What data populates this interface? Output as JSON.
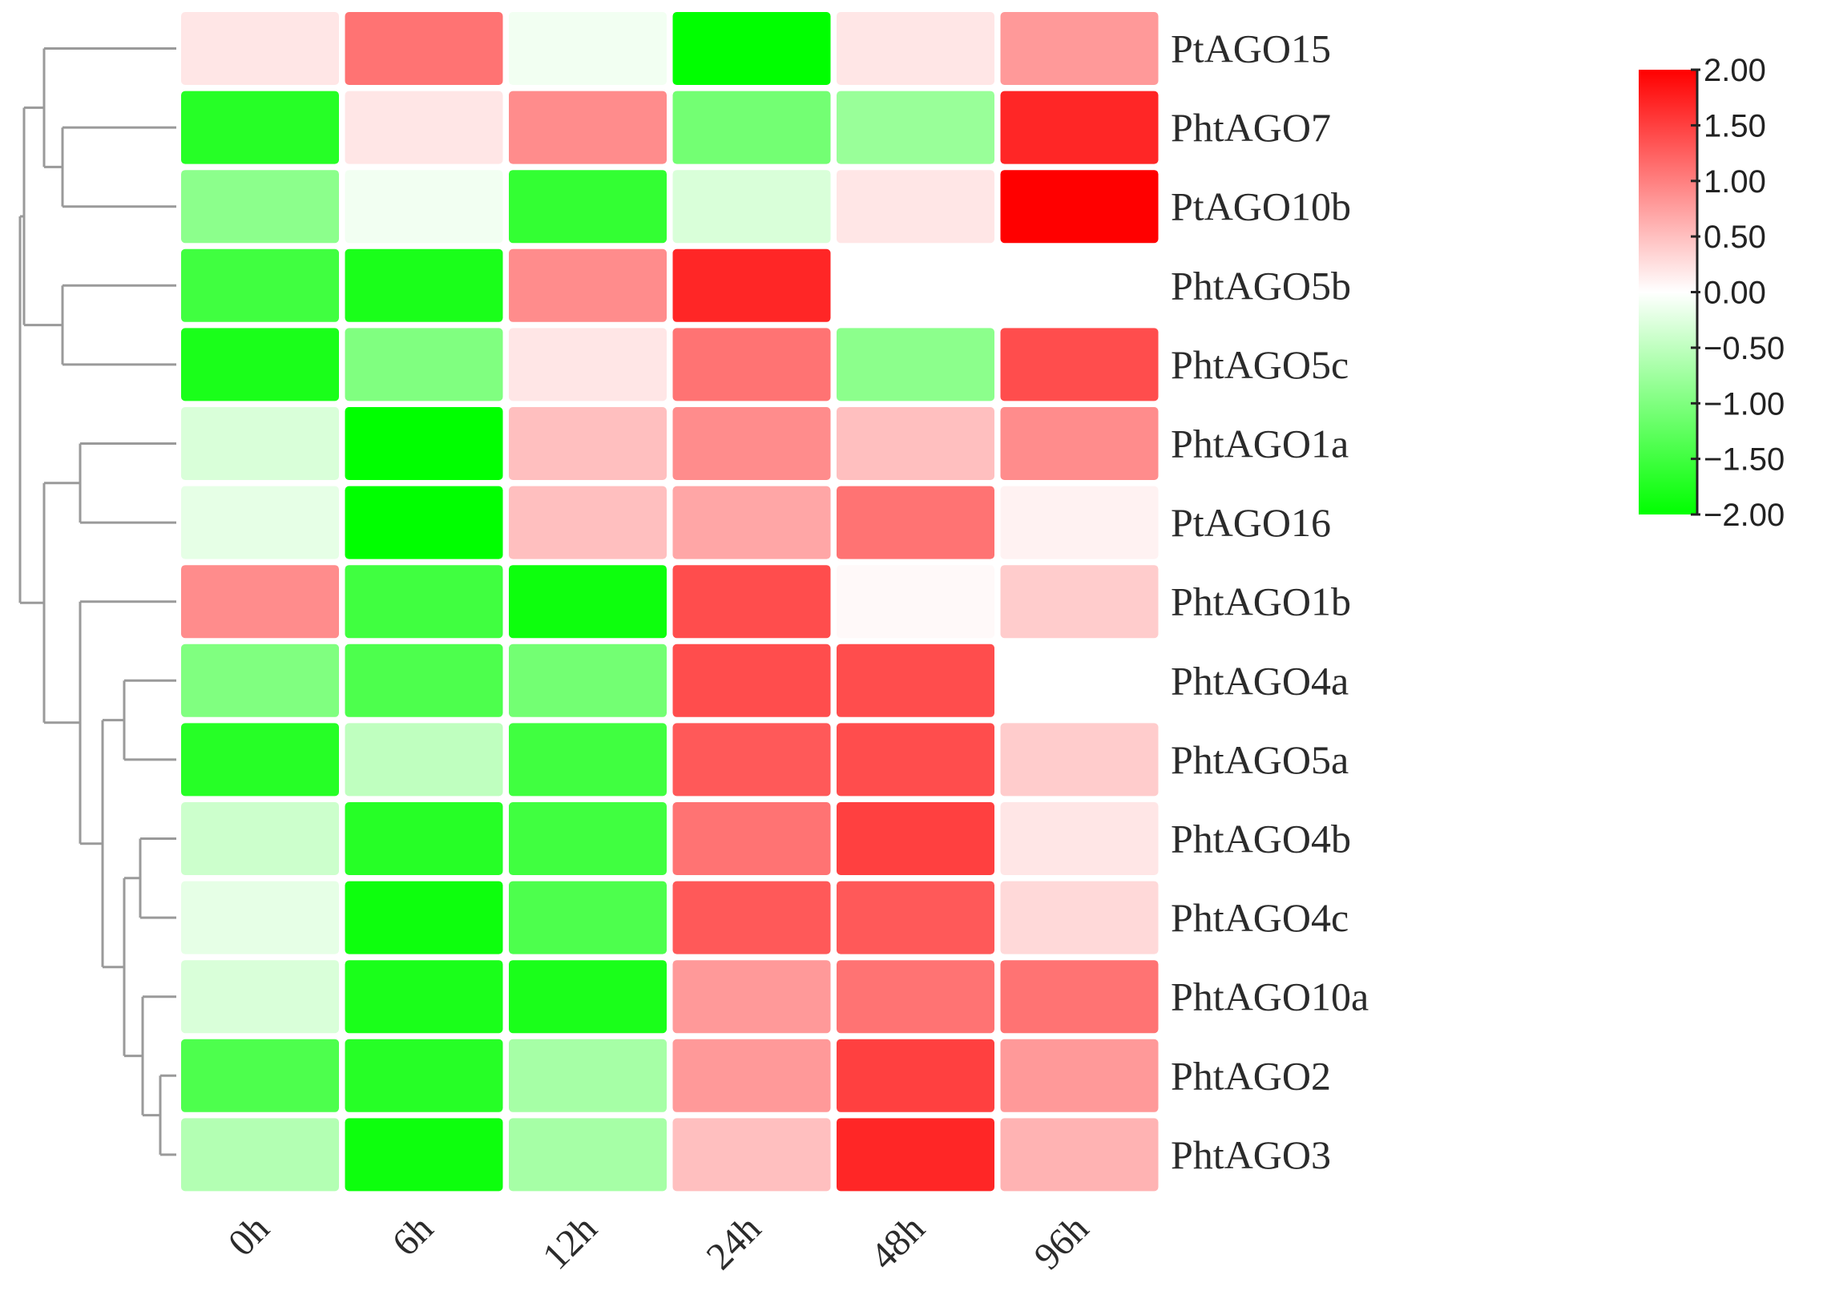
{
  "chart_data": {
    "type": "heatmap",
    "title": "",
    "xlabel": "",
    "ylabel": "",
    "columns": [
      "0h",
      "6h",
      "12h",
      "24h",
      "48h",
      "96h"
    ],
    "rows": [
      "PtAGO15",
      "PhtAGO7",
      "PtAGO10b",
      "PhtAGO5b",
      "PhtAGO5c",
      "PhtAGO1a",
      "PtAGO16",
      "PhtAGO1b",
      "PhtAGO4a",
      "PhtAGO5a",
      "PhtAGO4b",
      "PhtAGO4c",
      "PhtAGO10a",
      "PhtAGO2",
      "PhtAGO3"
    ],
    "values": [
      [
        0.2,
        1.1,
        -0.1,
        -2.0,
        0.2,
        0.8
      ],
      [
        -1.7,
        0.2,
        0.9,
        -1.1,
        -0.8,
        1.7
      ],
      [
        -0.9,
        -0.1,
        -1.6,
        -0.3,
        0.2,
        2.0
      ],
      [
        -1.5,
        -1.8,
        0.9,
        1.7,
        0.0,
        0.0
      ],
      [
        -1.8,
        -1.0,
        0.2,
        1.1,
        -0.9,
        1.4
      ],
      [
        -0.3,
        -2.0,
        0.5,
        0.9,
        0.5,
        0.9
      ],
      [
        -0.2,
        -2.0,
        0.5,
        0.7,
        1.1,
        0.1
      ],
      [
        0.9,
        -1.5,
        -1.9,
        1.4,
        0.05,
        0.4
      ],
      [
        -1.0,
        -1.4,
        -1.1,
        1.4,
        1.4,
        null
      ],
      [
        -1.7,
        -0.5,
        -1.5,
        1.3,
        1.4,
        0.4
      ],
      [
        -0.4,
        -1.7,
        -1.5,
        1.1,
        1.5,
        0.2
      ],
      [
        -0.2,
        -1.9,
        -1.4,
        1.3,
        1.3,
        0.3
      ],
      [
        -0.3,
        -1.8,
        -1.8,
        0.8,
        1.1,
        1.1
      ],
      [
        -1.4,
        -1.7,
        -0.7,
        0.8,
        1.5,
        0.8
      ],
      [
        -0.6,
        -1.9,
        -0.7,
        0.5,
        1.7,
        0.6
      ]
    ],
    "colorscale": {
      "min": -2.0,
      "max": 2.0,
      "colors": {
        "low": "#00ff00",
        "mid": "#ffffff",
        "high": "#ff0000"
      },
      "ticks": [
        "2.00",
        "1.50",
        "1.00",
        "0.50",
        "0.00",
        "−0.50",
        "−1.00",
        "−1.50",
        "−2.00"
      ]
    },
    "dendrogram": "left",
    "grid": false,
    "legend": "right (color scale)"
  }
}
